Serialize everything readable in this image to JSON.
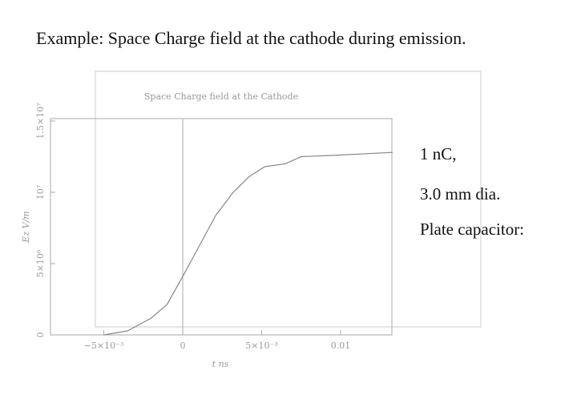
{
  "slide": {
    "title": "Example: Space Charge field at the cathode during emission.",
    "bullets": [
      "1 nC,",
      "3.0 mm dia.",
      "Plate capacitor:"
    ]
  },
  "chart_data": {
    "type": "line",
    "title": "Space Charge field at the Cathode",
    "x_label": "t  ns",
    "y_label": "Ez  V/m",
    "color": "#888888",
    "x": [
      -0.005,
      -0.0035,
      -0.002,
      -0.001,
      0,
      0.0011,
      0.0021,
      0.0032,
      0.0042,
      0.0052,
      0.0065,
      0.0075,
      0.0097,
      0.0133
    ],
    "values": [
      0,
      280000,
      1180000,
      2130000,
      4100000,
      6350000,
      8400000,
      10000000,
      11100000,
      11800000,
      12000000,
      12500000,
      12600000,
      12800000
    ],
    "xlim": [
      -0.00838,
      0.01325
    ],
    "xticks": [
      {
        "value": -0.005,
        "label": "−5×10⁻³"
      },
      0,
      {
        "value": 0.005,
        "label": "5×10⁻³"
      },
      0.01
    ],
    "ylim": [
      0,
      15170000
    ],
    "yticks": [
      0,
      {
        "value": 5000000,
        "label": "5×10⁶"
      },
      {
        "value": 10000000,
        "label": "10⁷"
      },
      {
        "value": 15000000,
        "label": "1.5×10⁷"
      }
    ]
  }
}
